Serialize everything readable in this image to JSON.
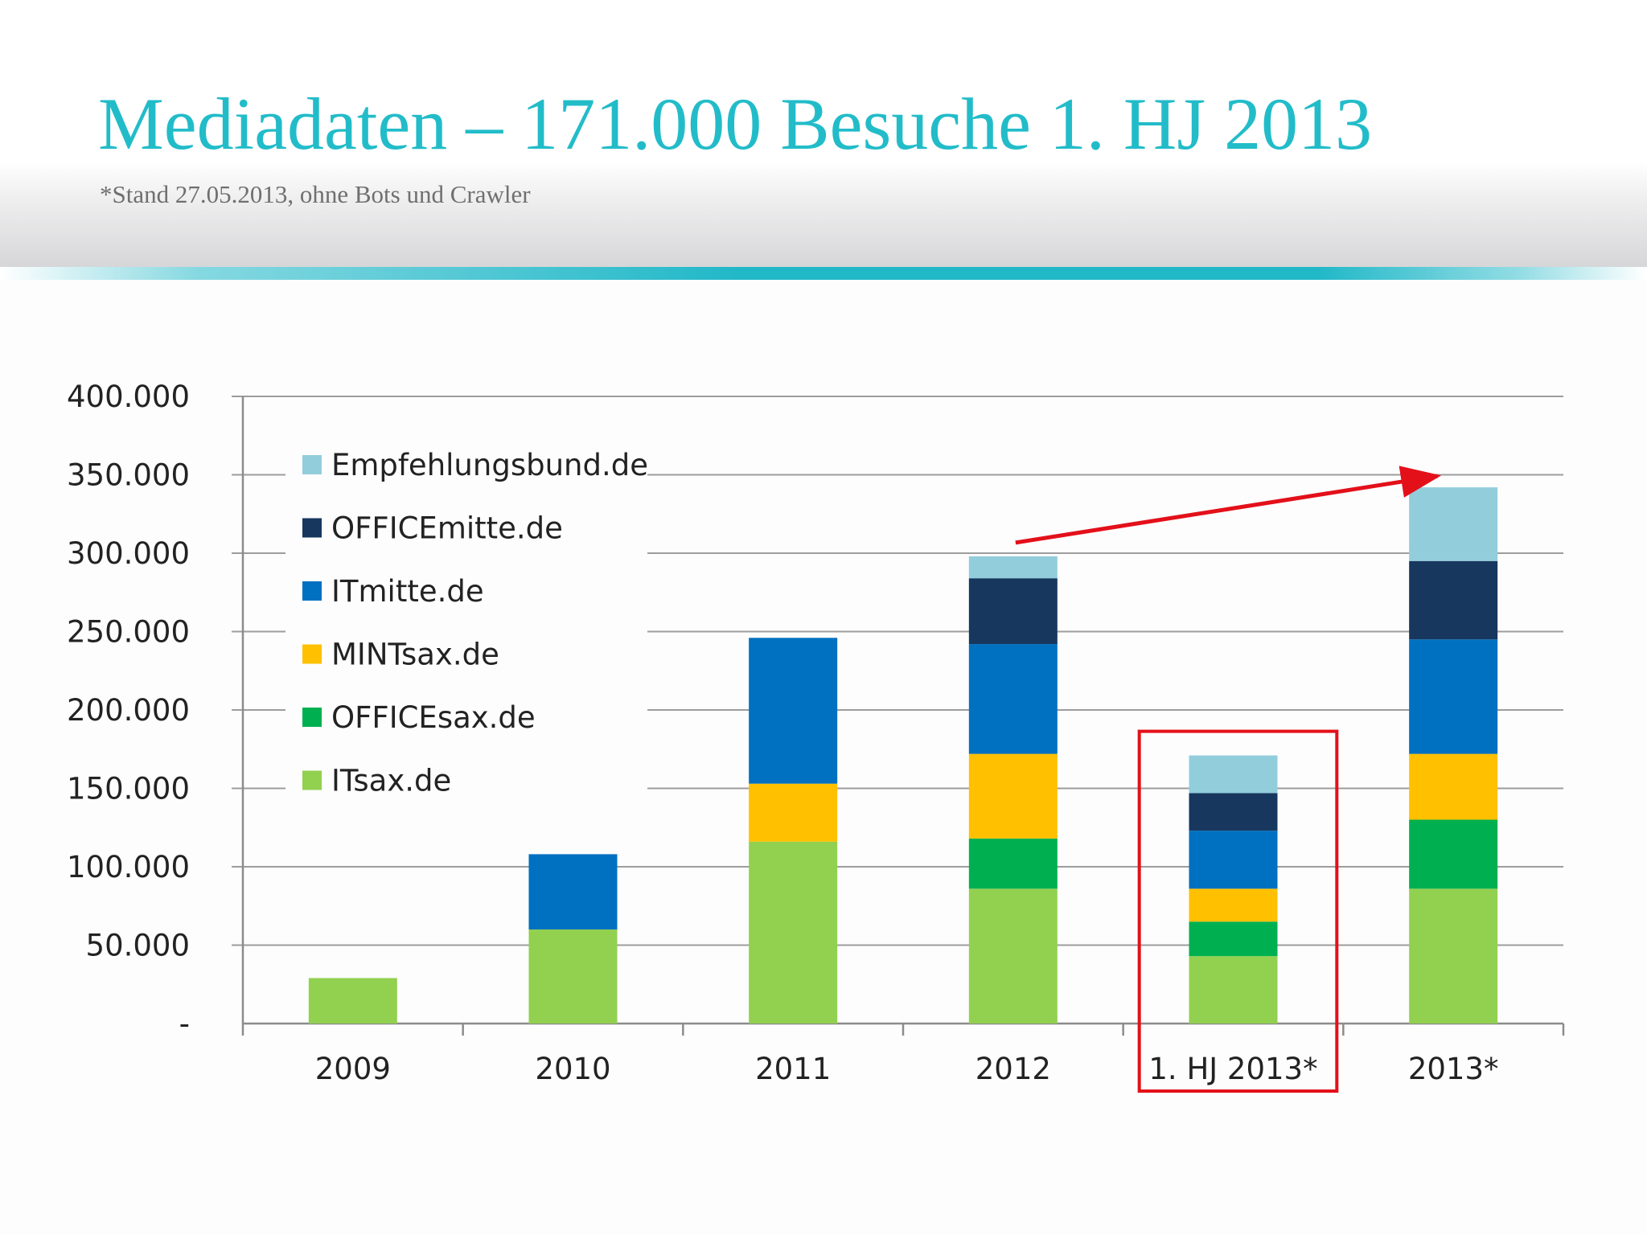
{
  "slide": {
    "title": "Mediadaten – 171.000 Besuche 1. HJ 2013",
    "subtitle": "*Stand 27.05.2013, ohne Bots und Crawler"
  },
  "colors": {
    "title": "#22bcc9",
    "accent_bar": "#21b8c8",
    "highlight": "#e3101a"
  },
  "chart_data": {
    "type": "bar",
    "stacked": true,
    "categories": [
      "2009",
      "2010",
      "2011",
      "2012",
      "1. HJ 2013*",
      "2013*"
    ],
    "y_tick_labels": [
      "-",
      "50.000",
      "100.000",
      "150.000",
      "200.000",
      "250.000",
      "300.000",
      "350.000",
      "400.000"
    ],
    "ylim": [
      0,
      400000
    ],
    "grid": true,
    "legend_position": "top-left",
    "series": [
      {
        "name": "ITsax.de",
        "color": "#92d050",
        "values": [
          29000,
          60000,
          116000,
          86000,
          43000,
          86000
        ]
      },
      {
        "name": "OFFICEsax.de",
        "color": "#00b050",
        "values": [
          0,
          0,
          0,
          32000,
          22000,
          44000
        ]
      },
      {
        "name": "MINTsax.de",
        "color": "#ffc000",
        "values": [
          0,
          0,
          37000,
          54000,
          21000,
          42000
        ]
      },
      {
        "name": "ITmitte.de",
        "color": "#0070c0",
        "values": [
          0,
          48000,
          93000,
          70000,
          37000,
          73000
        ]
      },
      {
        "name": "OFFICEmitte.de",
        "color": "#17375e",
        "values": [
          0,
          0,
          0,
          42000,
          24000,
          50000
        ]
      },
      {
        "name": "Empfehlungsbund.de",
        "color": "#92cddc",
        "values": [
          0,
          0,
          0,
          14000,
          24000,
          47000
        ]
      }
    ],
    "annotations": {
      "highlighted_category": "1. HJ 2013*",
      "trend_arrow": {
        "from_category": "2012",
        "to_category": "2013*"
      }
    }
  }
}
